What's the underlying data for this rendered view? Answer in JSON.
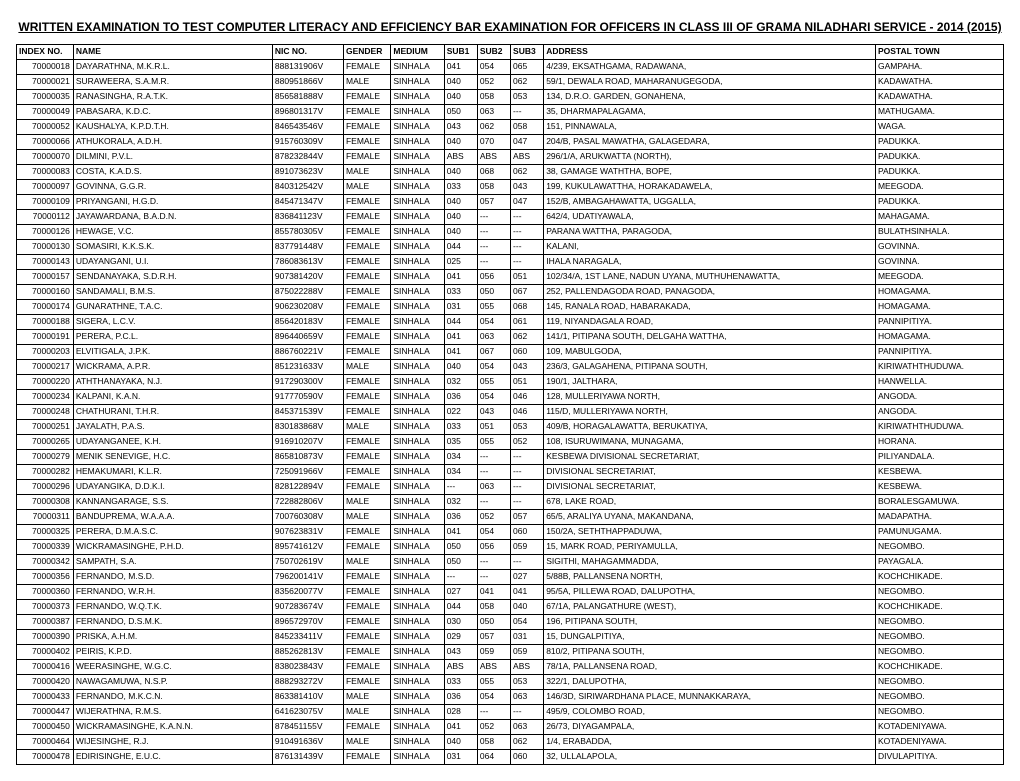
{
  "title": "WRITTEN EXAMINATION TO TEST COMPUTER LITERACY AND EFFICIENCY BAR EXAMINATION FOR OFFICERS IN CLASS III OF GRAMA NILADHARI SERVICE - 2014 (2015)",
  "columns": [
    "INDEX NO.",
    "NAME",
    "NIC NO.",
    "GENDER",
    "MEDIUM",
    "SUB1",
    "SUB2",
    "SUB3",
    "ADDRESS",
    "POSTAL TOWN"
  ],
  "rows": [
    [
      "70000018",
      "DAYARATHNA, M.K.R.L.",
      "888131906V",
      "FEMALE",
      "SINHALA",
      "041",
      "054",
      "065",
      "4/239, EKSATHGAMA, RADAWANA,",
      "GAMPAHA."
    ],
    [
      "70000021",
      "SURAWEERA, S.A.M.R.",
      "880951866V",
      "MALE",
      "SINHALA",
      "040",
      "052",
      "062",
      "59/1, DEWALA ROAD, MAHARANUGEGODA,",
      "KADAWATHA."
    ],
    [
      "70000035",
      "RANASINGHA, R.A.T.K.",
      "856581888V",
      "FEMALE",
      "SINHALA",
      "040",
      "058",
      "053",
      "134, D.R.O. GARDEN, GONAHENA,",
      "KADAWATHA."
    ],
    [
      "70000049",
      "PABASARA, K.D.C.",
      "896801317V",
      "FEMALE",
      "SINHALA",
      "050",
      "063",
      "---",
      "35, DHARMAPALAGAMA,",
      "MATHUGAMA."
    ],
    [
      "70000052",
      "KAUSHALYA, K.P.D.T.H.",
      "846543546V",
      "FEMALE",
      "SINHALA",
      "043",
      "062",
      "058",
      "151, PINNAWALA,",
      "WAGA."
    ],
    [
      "70000066",
      "ATHUKORALA, A.D.H.",
      "915760309V",
      "FEMALE",
      "SINHALA",
      "040",
      "070",
      "047",
      "204/B, PASAL MAWATHA, GALAGEDARA,",
      "PADUKKA."
    ],
    [
      "70000070",
      "DILMINI, P.V.L.",
      "878232844V",
      "FEMALE",
      "SINHALA",
      "ABS",
      "ABS",
      "ABS",
      "296/1/A, ARUKWATTA (NORTH),",
      "PADUKKA."
    ],
    [
      "70000083",
      "COSTA, K.A.D.S.",
      "891073623V",
      "MALE",
      "SINHALA",
      "040",
      "068",
      "062",
      "38, GAMAGE WATHTHA, BOPE,",
      "PADUKKA."
    ],
    [
      "70000097",
      "GOVINNA, G.G.R.",
      "840312542V",
      "MALE",
      "SINHALA",
      "033",
      "058",
      "043",
      "199, KUKULAWATTHA, HORAKADAWELA,",
      "MEEGODA."
    ],
    [
      "70000109",
      "PRIYANGANI, H.G.D.",
      "845471347V",
      "FEMALE",
      "SINHALA",
      "040",
      "057",
      "047",
      "152/B, AMBAGAHAWATTA, UGGALLA,",
      "PADUKKA."
    ],
    [
      "70000112",
      "JAYAWARDANA, B.A.D.N.",
      "836841123V",
      "FEMALE",
      "SINHALA",
      "040",
      "---",
      "---",
      "642/4, UDATIYAWALA,",
      "MAHAGAMA."
    ],
    [
      "70000126",
      "HEWAGE, V.C.",
      "855780305V",
      "FEMALE",
      "SINHALA",
      "040",
      "---",
      "---",
      "PARANA WATTHA, PARAGODA,",
      "BULATHSINHALA."
    ],
    [
      "70000130",
      "SOMASIRI, K.K.S.K.",
      "837791448V",
      "FEMALE",
      "SINHALA",
      "044",
      "---",
      "---",
      "KALANI,",
      "GOVINNA."
    ],
    [
      "70000143",
      "UDAYANGANI, U.I.",
      "786083613V",
      "FEMALE",
      "SINHALA",
      "025",
      "---",
      "---",
      "IHALA NARAGALA,",
      "GOVINNA."
    ],
    [
      "70000157",
      "SENDANAYAKA, S.D.R.H.",
      "907381420V",
      "FEMALE",
      "SINHALA",
      "041",
      "056",
      "051",
      "102/34/A, 1ST LANE, NADUN UYANA, MUTHUHENAWATTA,",
      "MEEGODA."
    ],
    [
      "70000160",
      "SANDAMALI, B.M.S.",
      "875022288V",
      "FEMALE",
      "SINHALA",
      "033",
      "050",
      "067",
      "252, PALLENDAGODA ROAD, PANAGODA,",
      "HOMAGAMA."
    ],
    [
      "70000174",
      "GUNARATHNE, T.A.C.",
      "906230208V",
      "FEMALE",
      "SINHALA",
      "031",
      "055",
      "068",
      "145, RANALA ROAD, HABARAKADA,",
      "HOMAGAMA."
    ],
    [
      "70000188",
      "SIGERA, L.C.V.",
      "856420183V",
      "FEMALE",
      "SINHALA",
      "044",
      "054",
      "061",
      "119, NIYANDAGALA ROAD,",
      "PANNIPITIYA."
    ],
    [
      "70000191",
      "PERERA, P.C.L.",
      "896440659V",
      "FEMALE",
      "SINHALA",
      "041",
      "063",
      "062",
      "141/1, PITIPANA SOUTH, DELGAHA WATTHA,",
      "HOMAGAMA."
    ],
    [
      "70000203",
      "ELVITIGALA, J.P.K.",
      "886760221V",
      "FEMALE",
      "SINHALA",
      "041",
      "067",
      "060",
      "109, MABULGODA,",
      "PANNIPITIYA."
    ],
    [
      "70000217",
      "WICKRAMA, A.P.R.",
      "851231633V",
      "MALE",
      "SINHALA",
      "040",
      "054",
      "043",
      "236/3, GALAGAHENA, PITIPANA SOUTH,",
      "KIRIWATHTHUDUWA."
    ],
    [
      "70000220",
      "ATHTHANAYAKA, N.J.",
      "917290300V",
      "FEMALE",
      "SINHALA",
      "032",
      "055",
      "051",
      "190/1, JALTHARA,",
      "HANWELLA."
    ],
    [
      "70000234",
      "KALPANI, K.A.N.",
      "917770590V",
      "FEMALE",
      "SINHALA",
      "036",
      "054",
      "046",
      "128, MULLERIYAWA NORTH,",
      "ANGODA."
    ],
    [
      "70000248",
      "CHATHURANI, T.H.R.",
      "845371539V",
      "FEMALE",
      "SINHALA",
      "022",
      "043",
      "046",
      "115/D, MULLERIYAWA NORTH,",
      "ANGODA."
    ],
    [
      "70000251",
      "JAYALATH, P.A.S.",
      "830183868V",
      "MALE",
      "SINHALA",
      "033",
      "051",
      "053",
      "409/B, HORAGALAWATTA, BERUKATIYA,",
      "KIRIWATHTHUDUWA."
    ],
    [
      "70000265",
      "UDAYANGANEE, K.H.",
      "916910207V",
      "FEMALE",
      "SINHALA",
      "035",
      "055",
      "052",
      "108, ISURUWIMANA, MUNAGAMA,",
      "HORANA."
    ],
    [
      "70000279",
      "MENIK SENEVIGE, H.C.",
      "865810873V",
      "FEMALE",
      "SINHALA",
      "034",
      "---",
      "---",
      "KESBEWA DIVISIONAL SECRETARIAT,",
      "PILIYANDALA."
    ],
    [
      "70000282",
      "HEMAKUMARI, K.L.R.",
      "725091966V",
      "FEMALE",
      "SINHALA",
      "034",
      "---",
      "---",
      "DIVISIONAL SECRETARIAT,",
      "KESBEWA."
    ],
    [
      "70000296",
      "UDAYANGIKA, D.D.K.I.",
      "828122894V",
      "FEMALE",
      "SINHALA",
      "---",
      "063",
      "---",
      "DIVISIONAL SECRETARIAT,",
      "KESBEWA."
    ],
    [
      "70000308",
      "KANNANGARAGE, S.S.",
      "722882806V",
      "MALE",
      "SINHALA",
      "032",
      "---",
      "---",
      "678, LAKE ROAD,",
      "BORALESGAMUWA."
    ],
    [
      "70000311",
      "BANDUPREMA, W.A.A.A.",
      "700760308V",
      "MALE",
      "SINHALA",
      "036",
      "052",
      "057",
      "65/5, ARALIYA UYANA, MAKANDANA,",
      "MADAPATHA."
    ],
    [
      "70000325",
      "PERERA, D.M.A.S.C.",
      "907623831V",
      "FEMALE",
      "SINHALA",
      "041",
      "054",
      "060",
      "150/2A, SETHTHAPPADUWA,",
      "PAMUNUGAMA."
    ],
    [
      "70000339",
      "WICKRAMASINGHE, P.H.D.",
      "895741612V",
      "FEMALE",
      "SINHALA",
      "050",
      "056",
      "059",
      "15, MARK ROAD, PERIYAMULLA,",
      "NEGOMBO."
    ],
    [
      "70000342",
      "SAMPATH, S.A.",
      "750702619V",
      "MALE",
      "SINHALA",
      "050",
      "---",
      "---",
      "SIGITHI, MAHAGAMMADDA,",
      "PAYAGALA."
    ],
    [
      "70000356",
      "FERNANDO, M.S.D.",
      "796200141V",
      "FEMALE",
      "SINHALA",
      "---",
      "---",
      "027",
      "5/88B, PALLANSENA NORTH,",
      "KOCHCHIKADE."
    ],
    [
      "70000360",
      "FERNANDO, W.R.H.",
      "835620077V",
      "FEMALE",
      "SINHALA",
      "027",
      "041",
      "041",
      "95/5A, PILLEWA ROAD, DALUPOTHA,",
      "NEGOMBO."
    ],
    [
      "70000373",
      "FERNANDO, W.Q.T.K.",
      "907283674V",
      "FEMALE",
      "SINHALA",
      "044",
      "058",
      "040",
      "67/1A, PALANGATHURE (WEST),",
      "KOCHCHIKADE."
    ],
    [
      "70000387",
      "FERNANDO, D.S.M.K.",
      "896572970V",
      "FEMALE",
      "SINHALA",
      "030",
      "050",
      "054",
      "196, PITIPANA SOUTH,",
      "NEGOMBO."
    ],
    [
      "70000390",
      "PRISKA, A.H.M.",
      "845233411V",
      "FEMALE",
      "SINHALA",
      "029",
      "057",
      "031",
      "15, DUNGALPITIYA,",
      "NEGOMBO."
    ],
    [
      "70000402",
      "PEIRIS, K.P.D.",
      "885262813V",
      "FEMALE",
      "SINHALA",
      "043",
      "059",
      "059",
      "810/2, PITIPANA SOUTH,",
      "NEGOMBO."
    ],
    [
      "70000416",
      "WEERASINGHE, W.G.C.",
      "838023843V",
      "FEMALE",
      "SINHALA",
      "ABS",
      "ABS",
      "ABS",
      "78/1A, PALLANSENA ROAD,",
      "KOCHCHIKADE."
    ],
    [
      "70000420",
      "NAWAGAMUWA, N.S.P.",
      "888293272V",
      "FEMALE",
      "SINHALA",
      "033",
      "055",
      "053",
      "322/1, DALUPOTHA,",
      "NEGOMBO."
    ],
    [
      "70000433",
      "FERNANDO, M.K.C.N.",
      "863381410V",
      "MALE",
      "SINHALA",
      "036",
      "054",
      "063",
      "146/3D, SIRIWARDHANA PLACE, MUNNAKKARAYA,",
      "NEGOMBO."
    ],
    [
      "70000447",
      "WIJERATHNA, R.M.S.",
      "641623075V",
      "MALE",
      "SINHALA",
      "028",
      "---",
      "---",
      "495/9, COLOMBO ROAD,",
      "NEGOMBO."
    ],
    [
      "70000450",
      "WICKRAMASINGHE, K.A.N.N.",
      "878451155V",
      "FEMALE",
      "SINHALA",
      "041",
      "052",
      "063",
      "26/73, DIYAGAMPALA,",
      "KOTADENIYAWA."
    ],
    [
      "70000464",
      "WIJESINGHE, R.J.",
      "910491636V",
      "MALE",
      "SINHALA",
      "040",
      "058",
      "062",
      "1/4, ERABADDA,",
      "KOTADENIYAWA."
    ],
    [
      "70000478",
      "EDIRISINGHE, E.U.C.",
      "876131439V",
      "FEMALE",
      "SINHALA",
      "031",
      "064",
      "060",
      "32, ULLALAPOLA,",
      "DIVULAPITIYA."
    ]
  ]
}
